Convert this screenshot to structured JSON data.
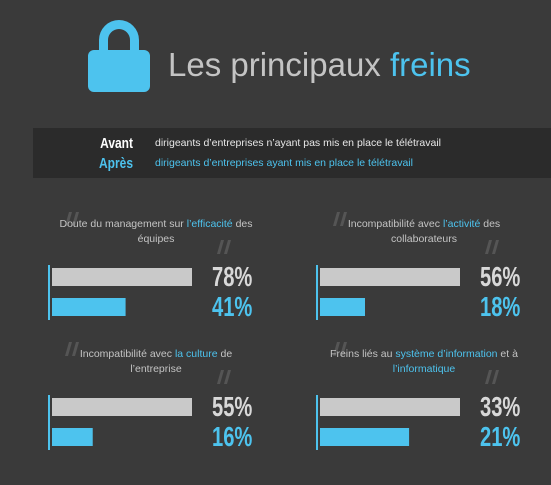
{
  "header": {
    "title_parts": [
      {
        "text": "Les principaux ",
        "highlight": false
      },
      {
        "text": "freins",
        "highlight": true
      }
    ]
  },
  "legend": [
    {
      "name": "Avant",
      "description": "dirigeants d’entreprises n’ayant pas mis en place le télétravail",
      "color": "#c9c9c9"
    },
    {
      "name": "Après",
      "description": "dirigeants d’entreprises ayant mis en place le télétravail",
      "color": "#4dc3ee"
    }
  ],
  "chart_data": [
    {
      "type": "bar",
      "title_parts": [
        {
          "text": "Doute du management sur ",
          "highlight": false
        },
        {
          "text": "l’efficacité",
          "highlight": true
        },
        {
          "text": " des équipes",
          "highlight": false
        }
      ],
      "values": [
        78,
        41
      ],
      "value_labels": [
        "78%",
        "41%"
      ]
    },
    {
      "type": "bar",
      "title_parts": [
        {
          "text": "Incompatibilité avec ",
          "highlight": false
        },
        {
          "text": "l’activité",
          "highlight": true
        },
        {
          "text": " des collaborateurs",
          "highlight": false
        }
      ],
      "values": [
        56,
        18
      ],
      "value_labels": [
        "56%",
        "18%"
      ]
    },
    {
      "type": "bar",
      "title_parts": [
        {
          "text": "Incompatibilité avec ",
          "highlight": false
        },
        {
          "text": "la culture",
          "highlight": true
        },
        {
          "text": " de l’entreprise",
          "highlight": false
        }
      ],
      "values": [
        55,
        16
      ],
      "value_labels": [
        "55%",
        "16%"
      ]
    },
    {
      "type": "bar",
      "title_parts": [
        {
          "text": "Freins liés au ",
          "highlight": false
        },
        {
          "text": "système d’information",
          "highlight": true
        },
        {
          "text": " et à ",
          "highlight": false
        },
        {
          "text": "l’informatique",
          "highlight": true
        }
      ],
      "values": [
        33,
        21
      ],
      "value_labels": [
        "33%",
        "21%"
      ]
    }
  ]
}
